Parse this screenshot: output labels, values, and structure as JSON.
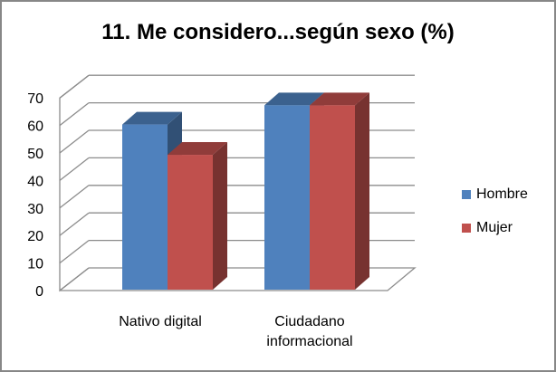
{
  "chart_data": {
    "type": "bar",
    "subtype": "3d-clustered-column",
    "title": "11. Me considero...según sexo (%)",
    "categories": [
      "Nativo digital",
      "Ciudadano informacional"
    ],
    "category_lines": [
      [
        "Nativo digital"
      ],
      [
        "Ciudadano",
        "informacional"
      ]
    ],
    "series": [
      {
        "name": "Hombre",
        "values": [
          60,
          67
        ],
        "color": "#4F81BD"
      },
      {
        "name": "Mujer",
        "values": [
          49,
          67
        ],
        "color": "#C0504D"
      }
    ],
    "xlabel": "",
    "ylabel": "",
    "ylim": [
      0,
      70
    ],
    "yticks": [
      "0",
      "10",
      "20",
      "30",
      "40",
      "50",
      "60",
      "70"
    ],
    "grid": true,
    "legend_position": "right"
  }
}
